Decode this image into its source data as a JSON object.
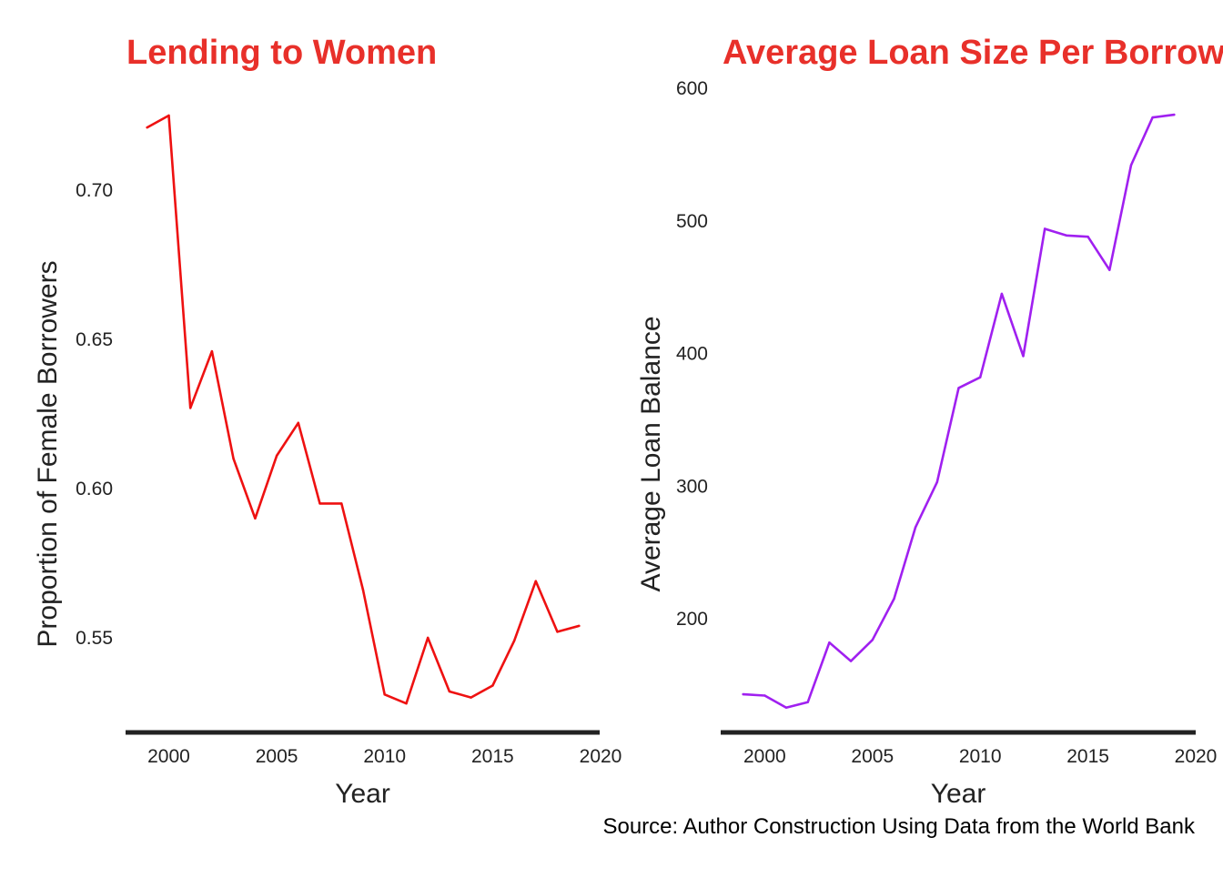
{
  "colors": {
    "title": "#E8302A",
    "axis_line": "#222222",
    "text": "#222222"
  },
  "caption": "Source: Author Construction Using Data from the World Bank",
  "chart_data": [
    {
      "type": "line",
      "title": "Lending to Women",
      "xlabel": "Year",
      "ylabel": "Proportion of Female Borrowers",
      "xlim": [
        1998,
        2020
      ],
      "ylim": [
        0.519,
        0.746
      ],
      "x_ticks": [
        2000,
        2005,
        2010,
        2015,
        2020
      ],
      "y_ticks": [
        0.55,
        0.6,
        0.65,
        0.7
      ],
      "y_tick_labels": [
        "0.55",
        "0.60",
        "0.65",
        "0.70"
      ],
      "grid": false,
      "series": [
        {
          "color": "#EE1111",
          "x": [
            1999,
            2000,
            2001,
            2002,
            2003,
            2004,
            2005,
            2006,
            2007,
            2008,
            2009,
            2010,
            2011,
            2012,
            2013,
            2014,
            2015,
            2016,
            2017,
            2018,
            2019
          ],
          "values": [
            0.721,
            0.725,
            0.627,
            0.646,
            0.61,
            0.59,
            0.611,
            0.622,
            0.595,
            0.595,
            0.566,
            0.531,
            0.528,
            0.55,
            0.532,
            0.53,
            0.534,
            0.549,
            0.569,
            0.552,
            0.554
          ]
        }
      ]
    },
    {
      "type": "line",
      "title": "Average Loan Size Per Borrower",
      "xlabel": "Year",
      "ylabel": "Average Loan Balance",
      "xlim": [
        1998,
        2020
      ],
      "ylim": [
        120,
        600
      ],
      "x_ticks": [
        2000,
        2005,
        2010,
        2015,
        2020
      ],
      "y_ticks": [
        200,
        300,
        400,
        500,
        600
      ],
      "y_tick_labels": [
        "200",
        "300",
        "400",
        "500",
        "600"
      ],
      "grid": false,
      "series": [
        {
          "color": "#A020F0",
          "x": [
            1999,
            2000,
            2001,
            2002,
            2003,
            2004,
            2005,
            2006,
            2007,
            2008,
            2009,
            2010,
            2011,
            2012,
            2013,
            2014,
            2015,
            2016,
            2017,
            2018,
            2019
          ],
          "values": [
            143,
            142,
            133,
            137,
            182,
            168,
            184,
            215,
            269,
            303,
            374,
            382,
            445,
            398,
            494,
            489,
            488,
            463,
            542,
            578,
            580
          ]
        }
      ]
    }
  ]
}
